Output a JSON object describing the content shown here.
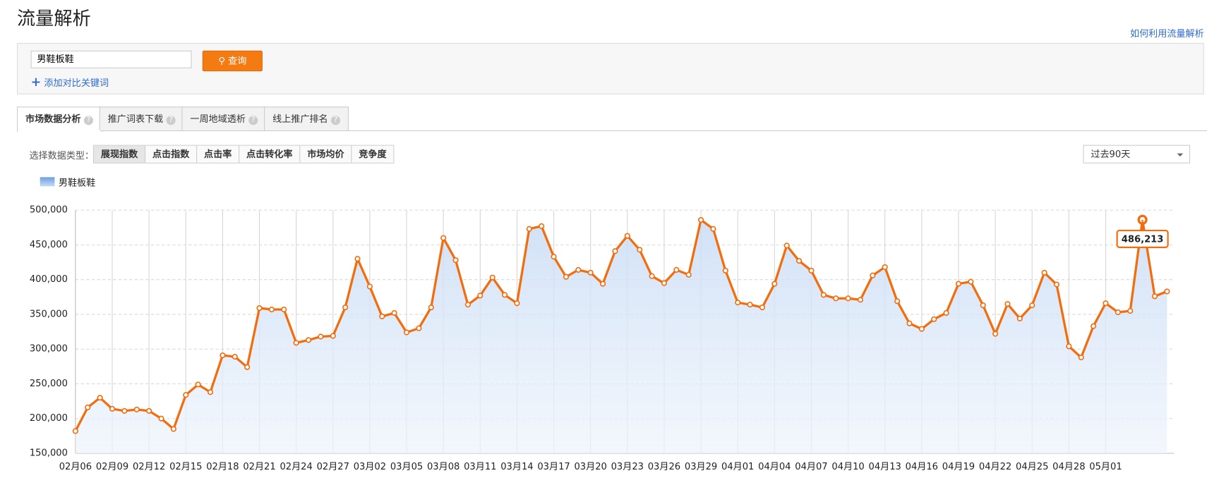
{
  "header": {
    "title": "流量解析",
    "help_link": "如何利用流量解析"
  },
  "search": {
    "keyword": "男鞋板鞋",
    "button": "查询",
    "add_compare": "添加对比关键词"
  },
  "tabs": [
    "市场数据分析",
    "推广词表下载",
    "一周地域透析",
    "线上推广排名"
  ],
  "data_type": {
    "label": "选择数据类型：",
    "options": [
      "展现指数",
      "点击指数",
      "点击率",
      "点击转化率",
      "市场均价",
      "竞争度"
    ],
    "period": "过去90天"
  },
  "chart_data": {
    "type": "line",
    "categories": [
      "02月06",
      null,
      null,
      "02月09",
      null,
      null,
      "02月12",
      null,
      null,
      "02月15",
      null,
      null,
      "02月18",
      null,
      null,
      "02月21",
      null,
      null,
      "02月24",
      null,
      null,
      "02月27",
      null,
      null,
      "03月02",
      null,
      null,
      "03月05",
      null,
      null,
      "03月08",
      null,
      null,
      "03月11",
      null,
      null,
      "03月14",
      null,
      null,
      "03月17",
      null,
      null,
      "03月20",
      null,
      null,
      "03月23",
      null,
      null,
      "03月26",
      null,
      null,
      "03月29",
      null,
      null,
      "04月01",
      null,
      null,
      "04月04",
      null,
      null,
      "04月07",
      null,
      null,
      "04月10",
      null,
      null,
      "04月13",
      null,
      null,
      "04月16",
      null,
      null,
      "04月19",
      null,
      null,
      "04月22",
      null,
      null,
      "04月25",
      null,
      null,
      "04月28",
      null,
      null,
      "05月01",
      null,
      null,
      null,
      null,
      null
    ],
    "series": [
      {
        "name": "男鞋板鞋",
        "color": "#f26d0d",
        "values": [
          182000,
          216000,
          230000,
          214000,
          211000,
          213000,
          211000,
          200000,
          185000,
          234000,
          249000,
          238000,
          291000,
          289000,
          274000,
          359000,
          357000,
          357000,
          309000,
          313000,
          318000,
          319000,
          360000,
          430000,
          390000,
          347000,
          352000,
          324000,
          330000,
          360000,
          460000,
          428000,
          364000,
          377000,
          403000,
          378000,
          366000,
          473000,
          477000,
          433000,
          404000,
          414000,
          410000,
          394000,
          441000,
          463000,
          443000,
          405000,
          395000,
          414000,
          407000,
          486000,
          473000,
          413000,
          367000,
          364000,
          360000,
          394000,
          449000,
          427000,
          413000,
          378000,
          373000,
          373000,
          371000,
          406000,
          418000,
          369000,
          337000,
          329000,
          343000,
          352000,
          394000,
          397000,
          363000,
          322000,
          365000,
          344000,
          363000,
          410000,
          393000,
          304000,
          288000,
          333000,
          366000,
          353000,
          355000,
          486213,
          376000,
          383000
        ],
        "value_labels": [
          null,
          null,
          null,
          null,
          null,
          null,
          null,
          null,
          null,
          null,
          null,
          null,
          null,
          null,
          null,
          null,
          null,
          null,
          null,
          null,
          null,
          null,
          null,
          null,
          null,
          null,
          null,
          null,
          null,
          null,
          null,
          null,
          null,
          null,
          null,
          null,
          null,
          null,
          null,
          null,
          null,
          null,
          null,
          null,
          null,
          null,
          null,
          null,
          null,
          null,
          null,
          null,
          null,
          null,
          null,
          null,
          null,
          null,
          null,
          null,
          null,
          null,
          null,
          null,
          null,
          null,
          null,
          null,
          null,
          null,
          null,
          null,
          null,
          null,
          null,
          null,
          null,
          null,
          null,
          null,
          null,
          null,
          null,
          null,
          null,
          null,
          null,
          "486,213",
          null,
          null
        ]
      }
    ],
    "ylim": [
      150000,
      500000
    ],
    "yticks": [
      {
        "value": 150000,
        "label": "150,000"
      },
      {
        "value": 200000,
        "label": "200,000"
      },
      {
        "value": 250000,
        "label": "250,000"
      },
      {
        "value": 300000,
        "label": "300,000"
      },
      {
        "value": 350000,
        "label": "350,000"
      },
      {
        "value": 400000,
        "label": "400,000"
      },
      {
        "value": 450000,
        "label": "450,000"
      },
      {
        "value": 500000,
        "label": "500,000"
      }
    ],
    "grid": true
  }
}
